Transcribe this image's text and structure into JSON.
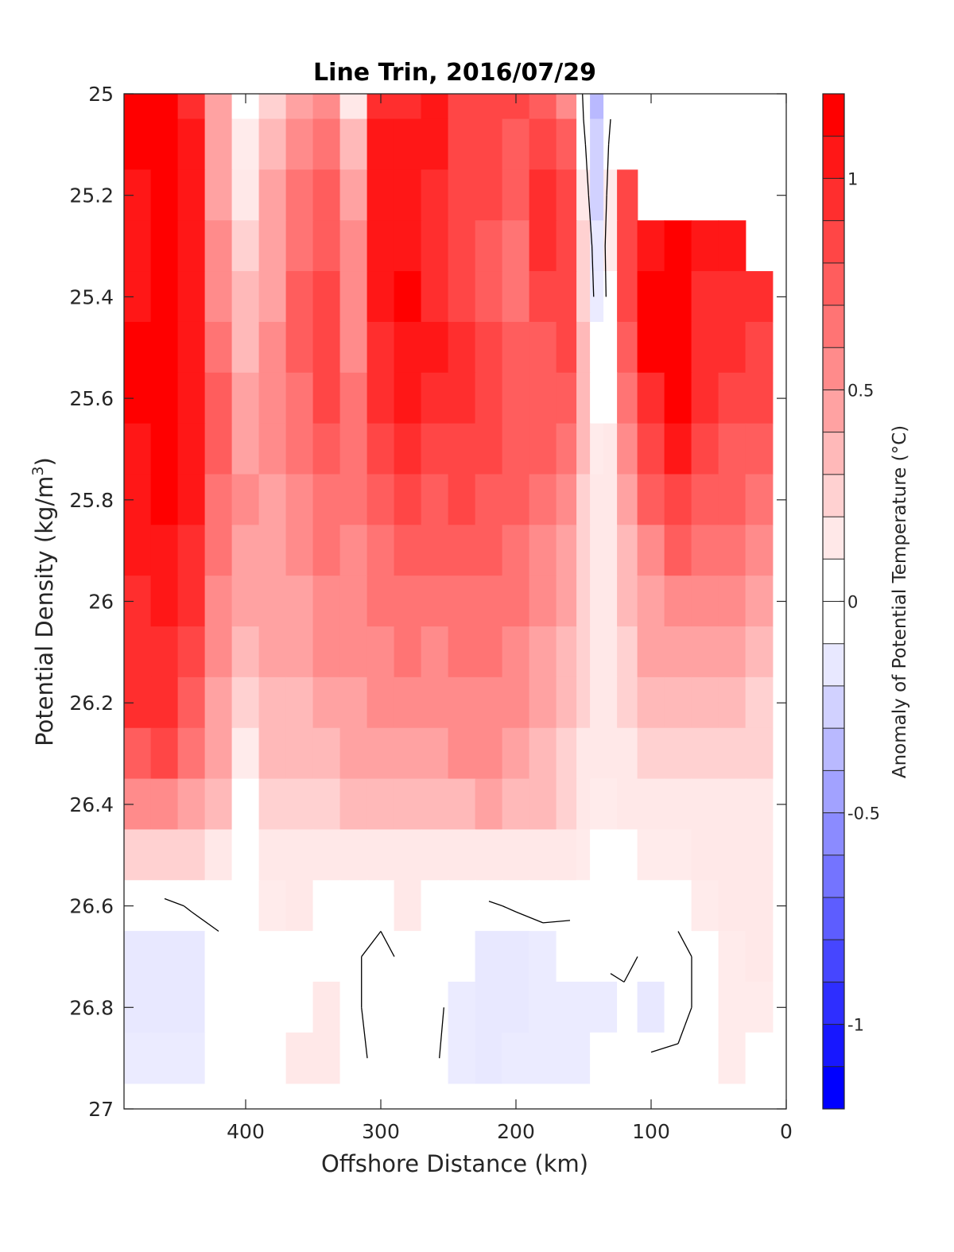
{
  "chart_data": {
    "type": "heatmap",
    "title": "Line Trin, 2016/07/29",
    "xlabel": "Offshore Distance (km)",
    "ylabel": "Potential Density (kg/m",
    "ylabel_sup": "3",
    "ylabel_close": ")",
    "xlim": [
      490,
      0
    ],
    "ylim": [
      25.0,
      27.0
    ],
    "x_reversed": true,
    "y_reversed": true,
    "xticks": [
      400,
      300,
      200,
      100,
      0
    ],
    "xtick_labels": [
      "400",
      "300",
      "200",
      "100",
      "0"
    ],
    "yticks": [
      25.0,
      25.2,
      25.4,
      25.6,
      25.8,
      26.0,
      26.2,
      26.4,
      26.6,
      26.8,
      27.0
    ],
    "ytick_labels": [
      "25",
      "25.2",
      "25.4",
      "25.6",
      "25.8",
      "26",
      "26.2",
      "26.4",
      "26.6",
      "26.8",
      "27"
    ],
    "colorbar": {
      "label": "Anomaly of Potential Temperature (°C)",
      "range": [
        -1.2,
        1.2
      ],
      "step": 0.1,
      "ticks": [
        1,
        0.5,
        0,
        -0.5,
        -1
      ],
      "tick_labels": [
        "1",
        "0.5",
        "0",
        "-0.5",
        "-1"
      ],
      "zero_band": [
        -0.1,
        0.1
      ],
      "positive_color": "#ff0000",
      "negative_color": "#0000ff"
    },
    "contour_level": 0,
    "distances_km": [
      480,
      460,
      440,
      420,
      400,
      380,
      360,
      340,
      320,
      300,
      280,
      260,
      240,
      220,
      200,
      180,
      160,
      150,
      140,
      130,
      120,
      100,
      80,
      60,
      40,
      20
    ],
    "density_levels": [
      25.0,
      25.1,
      25.2,
      25.3,
      25.4,
      25.5,
      25.6,
      25.7,
      25.8,
      25.9,
      26.0,
      26.1,
      26.2,
      26.3,
      26.4,
      26.5,
      26.6,
      26.7,
      26.8,
      26.9
    ],
    "anomaly_rows": [
      [
        1.15,
        1.25,
        1.0,
        0.5,
        0.05,
        0.3,
        0.45,
        0.55,
        0.15,
        0.95,
        1.0,
        1.1,
        0.9,
        0.9,
        0.85,
        0.8,
        0.6,
        -0.05,
        -0.35,
        -0.05,
        null,
        null,
        null,
        null,
        null,
        null
      ],
      [
        1.15,
        1.25,
        1.05,
        0.5,
        0.1,
        0.35,
        0.55,
        0.65,
        0.35,
        1.05,
        1.05,
        1.05,
        0.9,
        0.85,
        0.8,
        0.9,
        0.75,
        0.05,
        -0.3,
        0.05,
        null,
        null,
        null,
        null,
        null,
        null
      ],
      [
        1.1,
        1.2,
        1.05,
        0.5,
        0.2,
        0.45,
        0.65,
        0.75,
        0.5,
        1.05,
        1.05,
        1.0,
        0.85,
        0.85,
        0.8,
        0.95,
        0.85,
        0.15,
        -0.25,
        0.1,
        0.9,
        null,
        null,
        null,
        null,
        null
      ],
      [
        1.05,
        1.2,
        1.1,
        0.55,
        0.3,
        0.5,
        0.7,
        0.8,
        0.55,
        1.05,
        1.1,
        1.0,
        0.85,
        0.8,
        0.7,
        0.95,
        0.9,
        0.25,
        -0.15,
        0.1,
        0.9,
        1.05,
        1.15,
        1.05,
        1.1,
        null
      ],
      [
        1.1,
        1.2,
        1.1,
        0.6,
        0.35,
        0.5,
        0.75,
        0.85,
        0.6,
        1.05,
        1.15,
        1.0,
        0.9,
        0.8,
        0.7,
        0.85,
        0.9,
        0.3,
        -0.1,
        0.05,
        0.85,
        1.15,
        1.15,
        1.0,
        1.0,
        0.95
      ],
      [
        1.15,
        1.2,
        1.1,
        0.7,
        0.4,
        0.55,
        0.75,
        0.9,
        0.6,
        1.0,
        1.1,
        1.05,
        0.95,
        0.85,
        0.75,
        0.8,
        0.85,
        0.35,
        0.0,
        0.05,
        0.75,
        1.15,
        1.2,
        1.0,
        0.95,
        0.9
      ],
      [
        1.15,
        1.2,
        1.1,
        0.75,
        0.45,
        0.55,
        0.7,
        0.85,
        0.65,
        0.95,
        1.05,
        1.0,
        0.95,
        0.9,
        0.8,
        0.8,
        0.8,
        0.4,
        0.05,
        0.05,
        0.65,
        1.0,
        1.2,
        0.95,
        0.85,
        0.85
      ],
      [
        1.1,
        1.2,
        1.1,
        0.75,
        0.5,
        0.55,
        0.65,
        0.75,
        0.65,
        0.9,
        1.0,
        0.9,
        0.9,
        0.85,
        0.8,
        0.75,
        0.7,
        0.35,
        0.1,
        0.15,
        0.55,
        0.9,
        1.1,
        0.9,
        0.8,
        0.8
      ],
      [
        1.1,
        1.15,
        1.05,
        0.7,
        0.55,
        0.5,
        0.6,
        0.7,
        0.65,
        0.75,
        0.85,
        0.8,
        0.85,
        0.8,
        0.75,
        0.7,
        0.6,
        0.3,
        0.15,
        0.2,
        0.45,
        0.75,
        0.9,
        0.8,
        0.75,
        0.7
      ],
      [
        1.05,
        1.1,
        1.0,
        0.65,
        0.5,
        0.5,
        0.55,
        0.65,
        0.6,
        0.7,
        0.75,
        0.75,
        0.75,
        0.75,
        0.7,
        0.6,
        0.5,
        0.3,
        0.15,
        0.2,
        0.4,
        0.6,
        0.75,
        0.7,
        0.65,
        0.6
      ],
      [
        1.0,
        1.05,
        0.95,
        0.6,
        0.45,
        0.5,
        0.5,
        0.6,
        0.6,
        0.65,
        0.7,
        0.7,
        0.7,
        0.7,
        0.65,
        0.55,
        0.45,
        0.25,
        0.15,
        0.2,
        0.35,
        0.5,
        0.6,
        0.6,
        0.55,
        0.5
      ],
      [
        1.0,
        1.0,
        0.9,
        0.55,
        0.35,
        0.45,
        0.45,
        0.55,
        0.55,
        0.6,
        0.65,
        0.6,
        0.65,
        0.65,
        0.6,
        0.5,
        0.4,
        0.25,
        0.15,
        0.2,
        0.3,
        0.45,
        0.5,
        0.5,
        0.45,
        0.4
      ],
      [
        0.95,
        0.95,
        0.8,
        0.5,
        0.25,
        0.4,
        0.4,
        0.45,
        0.5,
        0.55,
        0.6,
        0.55,
        0.6,
        0.6,
        0.55,
        0.45,
        0.35,
        0.25,
        0.15,
        0.15,
        0.25,
        0.35,
        0.4,
        0.4,
        0.35,
        0.3
      ],
      [
        0.8,
        0.85,
        0.7,
        0.45,
        0.1,
        0.35,
        0.35,
        0.4,
        0.45,
        0.5,
        0.5,
        0.5,
        0.55,
        0.55,
        0.5,
        0.4,
        0.3,
        0.2,
        0.15,
        0.15,
        0.2,
        0.3,
        0.3,
        0.3,
        0.25,
        0.25
      ],
      [
        0.6,
        0.6,
        0.5,
        0.35,
        0.05,
        0.25,
        0.3,
        0.3,
        0.35,
        0.35,
        0.4,
        0.4,
        0.4,
        0.45,
        0.4,
        0.35,
        0.25,
        0.15,
        0.1,
        0.1,
        0.15,
        0.2,
        0.2,
        0.2,
        0.2,
        0.2
      ],
      [
        0.3,
        0.3,
        0.25,
        0.2,
        0.05,
        0.15,
        0.15,
        0.15,
        0.15,
        0.15,
        0.2,
        0.2,
        0.2,
        0.2,
        0.2,
        0.15,
        0.12,
        0.1,
        0.05,
        0.05,
        0.05,
        0.1,
        0.1,
        0.15,
        0.15,
        0.15
      ],
      [
        0.0,
        -0.05,
        0.02,
        0.05,
        0.05,
        0.1,
        0.12,
        0.05,
        0.0,
        0.05,
        0.12,
        0.05,
        0.0,
        -0.02,
        0.02,
        0.05,
        0.02,
        0.0,
        0.02,
        0.05,
        0.05,
        0.0,
        0.05,
        0.1,
        0.15,
        0.15
      ],
      [
        -0.15,
        -0.2,
        -0.15,
        -0.05,
        0.0,
        0.02,
        0.05,
        0.08,
        0.02,
        -0.05,
        0.05,
        0.0,
        -0.05,
        -0.15,
        -0.15,
        -0.1,
        -0.05,
        0.0,
        0.0,
        0.05,
        0.05,
        -0.05,
        -0.05,
        0.05,
        0.1,
        0.12
      ],
      [
        -0.15,
        -0.2,
        -0.15,
        -0.05,
        0.0,
        0.02,
        0.05,
        0.12,
        0.02,
        -0.05,
        0.0,
        0.05,
        -0.1,
        -0.2,
        -0.15,
        -0.1,
        -0.1,
        -0.1,
        -0.1,
        -0.1,
        -0.05,
        -0.15,
        -0.05,
        0.05,
        0.1,
        0.1
      ],
      [
        -0.1,
        -0.1,
        -0.1,
        -0.05,
        0.0,
        0.02,
        0.12,
        0.12,
        0.02,
        -0.02,
        0.02,
        0.02,
        -0.1,
        -0.15,
        -0.1,
        -0.1,
        -0.1,
        -0.1,
        -0.05,
        -0.05,
        0.0,
        0.02,
        0.02,
        0.05,
        0.1,
        0.08
      ]
    ]
  }
}
